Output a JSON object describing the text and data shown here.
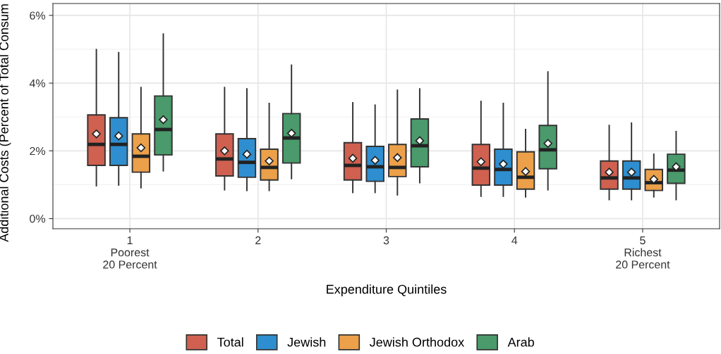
{
  "chart_data": {
    "type": "box",
    "xlabel": "Expenditure Quintiles",
    "ylabel": "Additional Costs (Percent of Total Consum",
    "categories": [
      "1\nPoorest\n20 Percent",
      "2",
      "3",
      "4",
      "5\nRichest\n20 Percent"
    ],
    "ylim": [
      -0.3,
      6.35
    ],
    "yticks": [
      {
        "value": 0,
        "label": "0%"
      },
      {
        "value": 2,
        "label": "2%"
      },
      {
        "value": 4,
        "label": "4%"
      },
      {
        "value": 6,
        "label": "6%"
      }
    ],
    "grid": true,
    "legend": "bottom",
    "series": [
      {
        "name": "Total",
        "color": "#d0604f",
        "boxes": [
          {
            "low": 0.97,
            "q1": 1.57,
            "median": 2.19,
            "q3": 3.06,
            "high": 4.99,
            "mean": 2.5
          },
          {
            "low": 0.85,
            "q1": 1.26,
            "median": 1.76,
            "q3": 2.5,
            "high": 3.87,
            "mean": 2.0
          },
          {
            "low": 0.77,
            "q1": 1.14,
            "median": 1.57,
            "q3": 2.24,
            "high": 3.42,
            "mean": 1.78
          },
          {
            "low": 0.66,
            "q1": 0.99,
            "median": 1.49,
            "q3": 2.19,
            "high": 3.46,
            "mean": 1.68
          },
          {
            "low": 0.56,
            "q1": 0.87,
            "median": 1.2,
            "q3": 1.7,
            "high": 2.75,
            "mean": 1.37
          }
        ]
      },
      {
        "name": "Jewish",
        "color": "#2e8ecf",
        "boxes": [
          {
            "low": 0.99,
            "q1": 1.57,
            "median": 2.19,
            "q3": 2.98,
            "high": 4.9,
            "mean": 2.44
          },
          {
            "low": 0.83,
            "q1": 1.22,
            "median": 1.66,
            "q3": 2.36,
            "high": 3.83,
            "mean": 1.9
          },
          {
            "low": 0.77,
            "q1": 1.1,
            "median": 1.53,
            "q3": 2.13,
            "high": 3.35,
            "mean": 1.72
          },
          {
            "low": 0.66,
            "q1": 0.99,
            "median": 1.45,
            "q3": 2.05,
            "high": 3.4,
            "mean": 1.61
          },
          {
            "low": 0.56,
            "q1": 0.87,
            "median": 1.2,
            "q3": 1.7,
            "high": 2.82,
            "mean": 1.37
          }
        ]
      },
      {
        "name": "Jewish Orthodox",
        "color": "#eca04a",
        "boxes": [
          {
            "low": 0.91,
            "q1": 1.37,
            "median": 1.84,
            "q3": 2.5,
            "high": 3.87,
            "mean": 2.09
          },
          {
            "low": 0.83,
            "q1": 1.14,
            "median": 1.51,
            "q3": 2.05,
            "high": 3.4,
            "mean": 1.7
          },
          {
            "low": 0.7,
            "q1": 1.24,
            "median": 1.51,
            "q3": 2.19,
            "high": 3.79,
            "mean": 1.8
          },
          {
            "low": 0.64,
            "q1": 0.87,
            "median": 1.22,
            "q3": 1.97,
            "high": 2.63,
            "mean": 1.39
          },
          {
            "low": 0.64,
            "q1": 0.83,
            "median": 1.06,
            "q3": 1.45,
            "high": 1.9,
            "mean": 1.16
          }
        ]
      },
      {
        "name": "Arab",
        "color": "#4a9a6b",
        "boxes": [
          {
            "low": 1.41,
            "q1": 1.88,
            "median": 2.63,
            "q3": 3.62,
            "high": 5.45,
            "mean": 2.92
          },
          {
            "low": 1.18,
            "q1": 1.64,
            "median": 2.38,
            "q3": 3.1,
            "high": 4.53,
            "mean": 2.52
          },
          {
            "low": 1.06,
            "q1": 1.53,
            "median": 2.15,
            "q3": 2.94,
            "high": 3.83,
            "mean": 2.3
          },
          {
            "low": 0.85,
            "q1": 1.47,
            "median": 2.03,
            "q3": 2.75,
            "high": 4.33,
            "mean": 2.22
          },
          {
            "low": 0.56,
            "q1": 1.04,
            "median": 1.43,
            "q3": 1.9,
            "high": 2.57,
            "mean": 1.53
          }
        ]
      }
    ]
  }
}
